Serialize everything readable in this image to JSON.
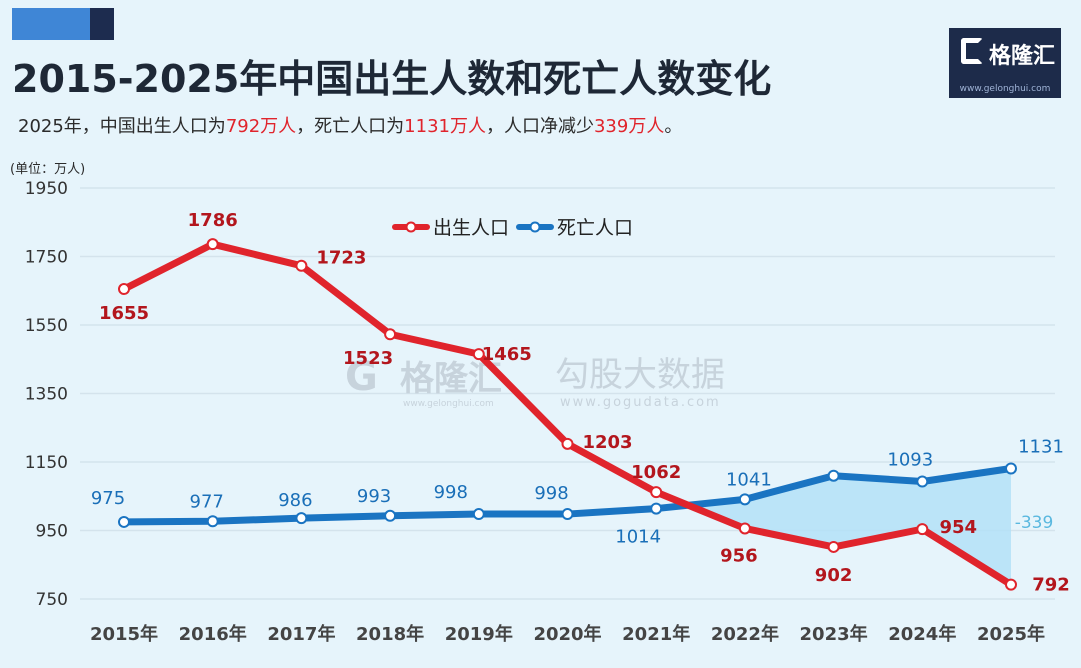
{
  "header": {
    "title": "2015-2025年中国出生人数和死亡人数变化",
    "subtitle": {
      "prefix": "2025年，中国出生人口为",
      "births": "792万人",
      "mid1": "，死亡人口为",
      "deaths": "1131万人",
      "mid2": "，人口净减少",
      "decrease": "339万人",
      "suffix": "。"
    }
  },
  "logo": {
    "name": "格隆汇",
    "url": "www.gelonghui.com"
  },
  "watermark": {
    "brand1": "格隆汇",
    "url1": "www.gelonghui.com",
    "brand2": "勾股大数据",
    "url2": "www.gogudata.com"
  },
  "colors": {
    "births": "#e0242c",
    "deaths": "#1a74c2",
    "gap_fill": "#b3e0f7",
    "grid": "#d4e3ec",
    "background": "#e6f4fb"
  },
  "chart_data": {
    "type": "line",
    "unit_label": "(单位：万人)",
    "x": [
      "2015年",
      "2016年",
      "2017年",
      "2018年",
      "2019年",
      "2020年",
      "2021年",
      "2022年",
      "2023年",
      "2024年",
      "2025年"
    ],
    "yticks": [
      750,
      950,
      1150,
      1350,
      1550,
      1750,
      1950
    ],
    "ylim": [
      750,
      1950
    ],
    "grid": true,
    "legend_position": "top-center",
    "series": [
      {
        "name": "出生人口",
        "color": "#e0242c",
        "values": [
          1655,
          1786,
          1723,
          1523,
          1465,
          1203,
          1062,
          956,
          902,
          954,
          792
        ]
      },
      {
        "name": "死亡人口",
        "color": "#1a74c2",
        "values": [
          975,
          977,
          986,
          993,
          998,
          998,
          1014,
          1041,
          1110,
          1093,
          1131
        ]
      }
    ],
    "point_labels": {
      "births": [
        "1655",
        "1786",
        "1723",
        "1523",
        "1465",
        "1203",
        "1062",
        "956",
        "902",
        "954",
        "792"
      ],
      "deaths": [
        "975",
        "977",
        "986",
        "993",
        "998",
        "998",
        "1014",
        "1041",
        "",
        "1093",
        "1131"
      ]
    },
    "annotation": "-339"
  }
}
